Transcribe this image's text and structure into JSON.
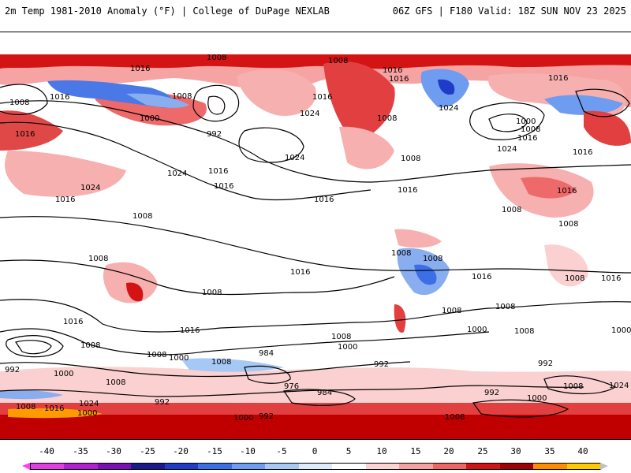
{
  "header": {
    "left": "2m Temp 1981-2010 Anomaly (°F) | College of DuPage NEXLAB",
    "right": "06Z GFS | F180 Valid: 18Z SUN NOV 23 2025"
  },
  "colorbar": {
    "ticks": [
      "-40",
      "-35",
      "-30",
      "-25",
      "-20",
      "-15",
      "-10",
      "-5",
      "0",
      "5",
      "10",
      "15",
      "20",
      "25",
      "30",
      "35",
      "40"
    ],
    "colors": [
      "#e33ce3",
      "#b21fd3",
      "#7a0fb8",
      "#1a1a8c",
      "#1e3cc8",
      "#3c6ee6",
      "#6e9cf0",
      "#a6c8f5",
      "#dceaf9",
      "#ffffff",
      "#fcd2d2",
      "#f7a0a0",
      "#f06464",
      "#d21414",
      "#a00000",
      "#ff8c00",
      "#ffc800"
    ]
  },
  "map": {
    "contour_labels": [
      {
        "id": "c1",
        "text": "1008"
      },
      {
        "id": "c2",
        "text": "1008"
      },
      {
        "id": "c3",
        "text": "1016"
      },
      {
        "id": "c4",
        "text": "1016"
      },
      {
        "id": "c5",
        "text": "1016"
      },
      {
        "id": "c6",
        "text": "1008"
      },
      {
        "id": "c7",
        "text": "1016"
      },
      {
        "id": "c8",
        "text": "1008"
      },
      {
        "id": "c9",
        "text": "1000"
      },
      {
        "id": "c10",
        "text": "992"
      },
      {
        "id": "c11",
        "text": "1016"
      },
      {
        "id": "c12",
        "text": "1024"
      },
      {
        "id": "c13",
        "text": "1024"
      },
      {
        "id": "c14",
        "text": "1016"
      },
      {
        "id": "c15",
        "text": "1016"
      },
      {
        "id": "c16",
        "text": "1024"
      },
      {
        "id": "c17",
        "text": "1024"
      },
      {
        "id": "c18",
        "text": "1008"
      },
      {
        "id": "c19",
        "text": "1016"
      },
      {
        "id": "c20",
        "text": "1016"
      },
      {
        "id": "c21",
        "text": "1024"
      },
      {
        "id": "c22",
        "text": "1016"
      },
      {
        "id": "c23",
        "text": "1008"
      },
      {
        "id": "c24",
        "text": "1008"
      },
      {
        "id": "c25",
        "text": "1016"
      },
      {
        "id": "c26",
        "text": "1008"
      },
      {
        "id": "c27",
        "text": "1016"
      },
      {
        "id": "c28",
        "text": "1008"
      },
      {
        "id": "c29",
        "text": "1008"
      },
      {
        "id": "c30",
        "text": "1016"
      },
      {
        "id": "c31",
        "text": "1000"
      },
      {
        "id": "c32",
        "text": "1008"
      },
      {
        "id": "c33",
        "text": "1016"
      },
      {
        "id": "c34",
        "text": "1024"
      },
      {
        "id": "c35",
        "text": "1016"
      },
      {
        "id": "c36",
        "text": "1016"
      },
      {
        "id": "c37",
        "text": "1008"
      },
      {
        "id": "c38",
        "text": "1008"
      },
      {
        "id": "c39",
        "text": "1008"
      },
      {
        "id": "c40",
        "text": "1008"
      },
      {
        "id": "c41",
        "text": "1016"
      },
      {
        "id": "c42",
        "text": "1016"
      },
      {
        "id": "c43",
        "text": "1008"
      },
      {
        "id": "c44",
        "text": "1016"
      },
      {
        "id": "c45",
        "text": "1008"
      },
      {
        "id": "c46",
        "text": "1000"
      },
      {
        "id": "c47",
        "text": "992"
      },
      {
        "id": "c48",
        "text": "984"
      },
      {
        "id": "c49",
        "text": "976"
      },
      {
        "id": "c50",
        "text": "984"
      },
      {
        "id": "c51",
        "text": "992"
      },
      {
        "id": "c52",
        "text": "1000"
      },
      {
        "id": "c53",
        "text": "1008"
      },
      {
        "id": "c54",
        "text": "1000"
      },
      {
        "id": "c55",
        "text": "1008"
      },
      {
        "id": "c56",
        "text": "1008"
      },
      {
        "id": "c57",
        "text": "1000"
      },
      {
        "id": "c58",
        "text": "992"
      },
      {
        "id": "c59",
        "text": "1008"
      },
      {
        "id": "c60",
        "text": "1024"
      },
      {
        "id": "c61",
        "text": "992"
      },
      {
        "id": "c62",
        "text": "1000"
      },
      {
        "id": "c63",
        "text": "1008"
      },
      {
        "id": "c64",
        "text": "1024"
      },
      {
        "id": "c65",
        "text": "1016"
      },
      {
        "id": "c66",
        "text": "1008"
      },
      {
        "id": "c67",
        "text": "1000"
      },
      {
        "id": "c68",
        "text": "992"
      },
      {
        "id": "c69",
        "text": "1000"
      },
      {
        "id": "c70",
        "text": "1000"
      },
      {
        "id": "c71",
        "text": "1008"
      },
      {
        "id": "c72",
        "text": "1016"
      },
      {
        "id": "c73",
        "text": "1008"
      },
      {
        "id": "c74",
        "text": "992"
      },
      {
        "id": "c75",
        "text": "1008"
      }
    ]
  }
}
